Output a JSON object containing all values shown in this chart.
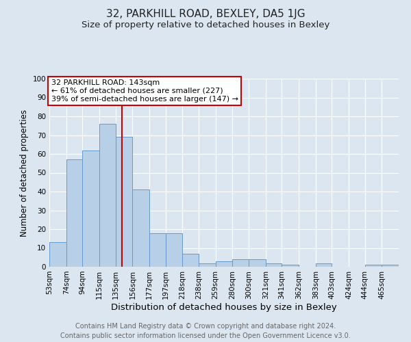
{
  "title": "32, PARKHILL ROAD, BEXLEY, DA5 1JG",
  "subtitle": "Size of property relative to detached houses in Bexley",
  "xlabel": "Distribution of detached houses by size in Bexley",
  "ylabel": "Number of detached properties",
  "footnote1": "Contains HM Land Registry data © Crown copyright and database right 2024.",
  "footnote2": "Contains public sector information licensed under the Open Government Licence v3.0.",
  "categories": [
    "53sqm",
    "74sqm",
    "94sqm",
    "115sqm",
    "135sqm",
    "156sqm",
    "177sqm",
    "197sqm",
    "218sqm",
    "238sqm",
    "259sqm",
    "280sqm",
    "300sqm",
    "321sqm",
    "341sqm",
    "362sqm",
    "383sqm",
    "403sqm",
    "424sqm",
    "444sqm",
    "465sqm"
  ],
  "values": [
    13,
    57,
    62,
    76,
    69,
    41,
    18,
    18,
    7,
    2,
    3,
    4,
    4,
    2,
    1,
    0,
    2,
    0,
    0,
    1,
    1
  ],
  "bar_color": "#b8cfe8",
  "bar_edge_color": "#6699cc",
  "background_color": "#dce6f0",
  "red_line_x": 143,
  "bin_edges": [
    53,
    74,
    94,
    115,
    135,
    156,
    177,
    197,
    218,
    238,
    259,
    280,
    300,
    321,
    341,
    362,
    383,
    403,
    424,
    444,
    465,
    486
  ],
  "annotation_text": "32 PARKHILL ROAD: 143sqm\n← 61% of detached houses are smaller (227)\n39% of semi-detached houses are larger (147) →",
  "annotation_box_color": "#ffffff",
  "annotation_box_edge_color": "#cc0000",
  "red_line_color": "#cc0000",
  "ylim": [
    0,
    100
  ],
  "yticks": [
    0,
    10,
    20,
    30,
    40,
    50,
    60,
    70,
    80,
    90,
    100
  ],
  "grid_color": "#ffffff",
  "title_fontsize": 11,
  "subtitle_fontsize": 9.5,
  "xlabel_fontsize": 9.5,
  "ylabel_fontsize": 8.5,
  "tick_fontsize": 7.5,
  "annotation_fontsize": 8,
  "footnote_fontsize": 7
}
